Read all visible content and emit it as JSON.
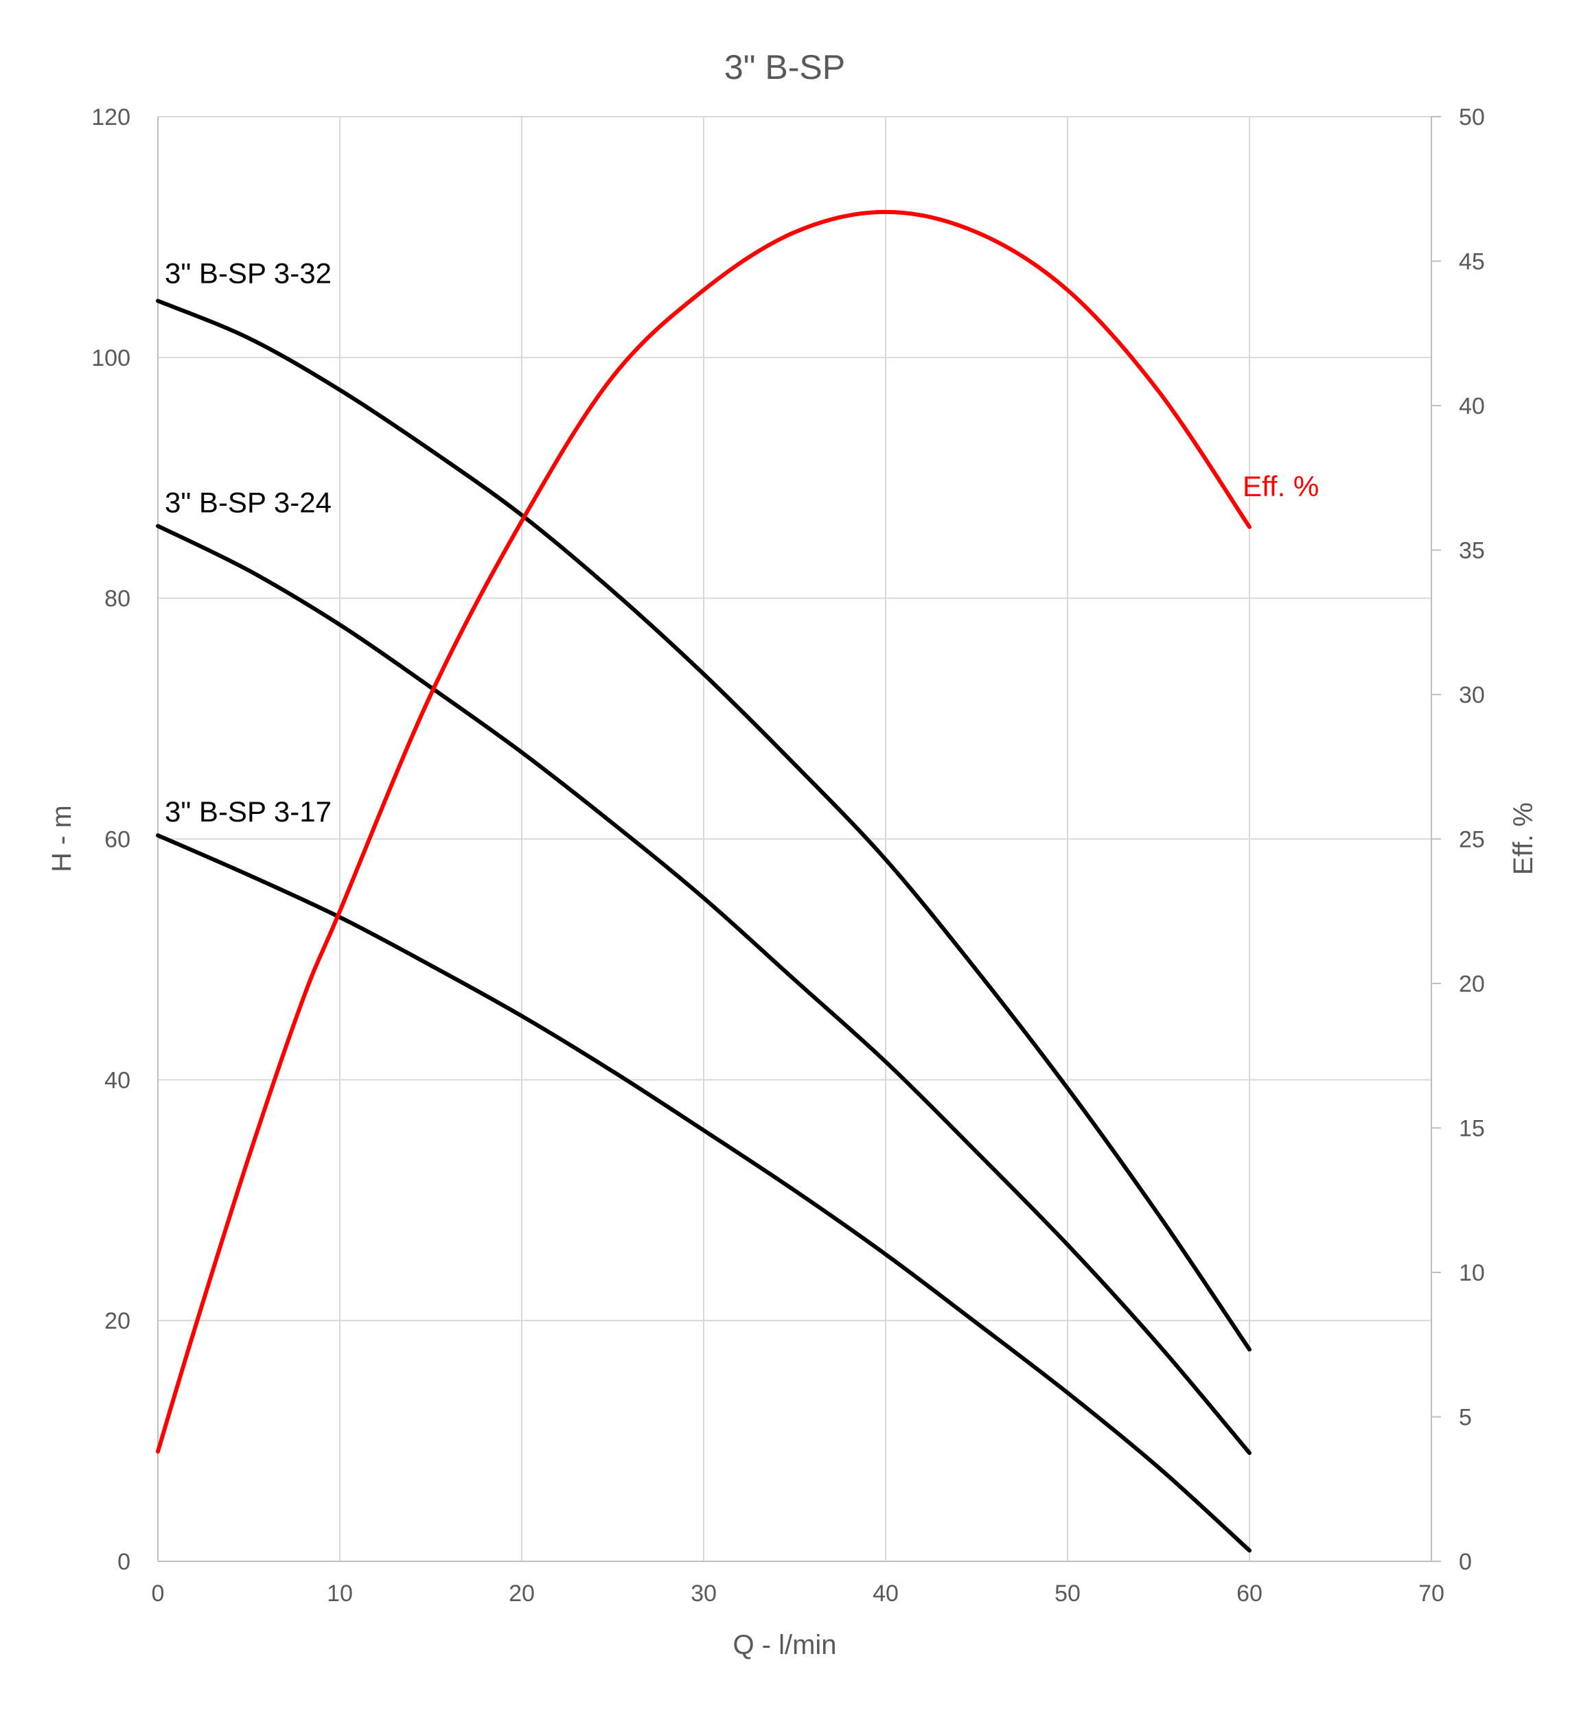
{
  "chart_data": {
    "type": "line",
    "title": "3\" B-SP",
    "xlabel": "Q - l/min",
    "ylabel": "H - m",
    "y2label": "Eff. %",
    "xlim": [
      0,
      70
    ],
    "ylim": [
      0,
      120
    ],
    "y2lim": [
      0,
      50
    ],
    "x_ticks": [
      0,
      10,
      20,
      30,
      40,
      50,
      60,
      70
    ],
    "y_ticks": [
      0,
      20,
      40,
      60,
      80,
      100,
      120
    ],
    "y2_ticks": [
      0,
      5,
      10,
      15,
      20,
      25,
      30,
      35,
      40,
      45,
      50
    ],
    "grid": true,
    "legend": "none",
    "colors": {
      "head": "#000000",
      "efficiency": "#ff0000",
      "grid": "#d9d9d9",
      "axis": "#bfbfbf",
      "text": "#595959"
    },
    "series": [
      {
        "name": "3\" B-SP 3-32",
        "axis": "left",
        "x": [
          0,
          5,
          10,
          15,
          20,
          25,
          30,
          35,
          40,
          45,
          50,
          55,
          60
        ],
        "y": [
          104.7,
          101.6,
          97.3,
          92.3,
          86.9,
          80.6,
          73.7,
          66.2,
          58.3,
          49.1,
          39.3,
          28.8,
          17.6
        ]
      },
      {
        "name": "3\" B-SP 3-24",
        "axis": "left",
        "x": [
          0,
          5,
          10,
          15,
          20,
          25,
          30,
          35,
          40,
          45,
          50,
          55,
          60
        ],
        "y": [
          86.0,
          82.3,
          77.8,
          72.6,
          67.2,
          61.3,
          55.1,
          48.3,
          41.5,
          34.0,
          26.3,
          18.0,
          9.0
        ]
      },
      {
        "name": "3\" B-SP 3-17",
        "axis": "left",
        "x": [
          0,
          5,
          10,
          15,
          20,
          25,
          30,
          35,
          40,
          45,
          50,
          55,
          60
        ],
        "y": [
          60.3,
          57.0,
          53.5,
          49.5,
          45.3,
          40.7,
          35.8,
          30.8,
          25.5,
          19.8,
          14.0,
          7.8,
          0.9
        ]
      },
      {
        "name": "Eff. %",
        "axis": "right",
        "x": [
          0,
          2,
          5,
          8,
          10,
          15,
          20,
          25,
          30,
          35,
          40,
          45,
          50,
          55,
          60
        ],
        "y": [
          3.8,
          8.0,
          14.0,
          19.5,
          22.5,
          30.0,
          36.0,
          41.0,
          44.0,
          46.0,
          46.7,
          46.0,
          44.0,
          40.5,
          35.8
        ]
      }
    ],
    "annotations": [
      {
        "text": "3\" B-SP 3-32",
        "series": 0
      },
      {
        "text": "3\" B-SP 3-24",
        "series": 1
      },
      {
        "text": "3\" B-SP 3-17",
        "series": 2
      },
      {
        "text": "Eff. %",
        "series": 3
      }
    ]
  }
}
